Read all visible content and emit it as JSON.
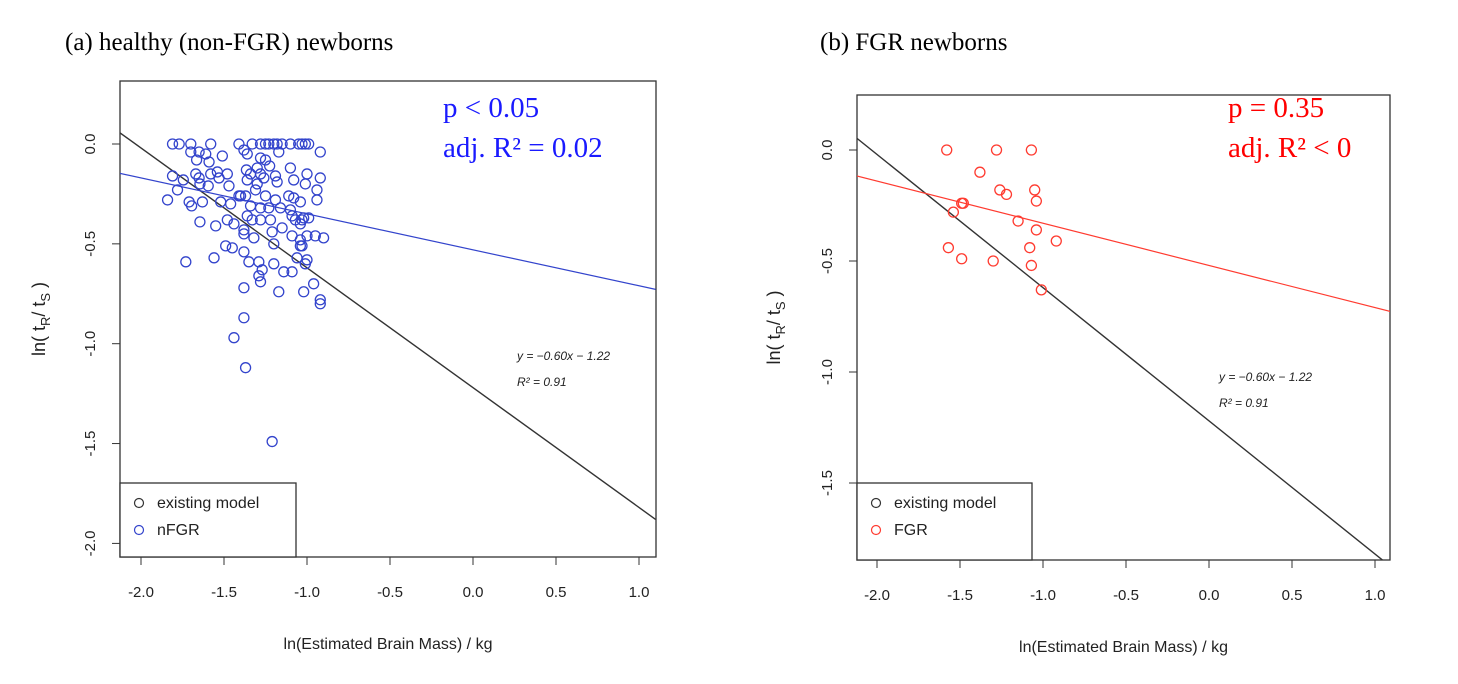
{
  "chart_data": [
    {
      "type": "scatter",
      "title": "(a) healthy (non-FGR) newborns",
      "xlabel": "ln(Estimated Brain Mass) / kg",
      "ylabel": {
        "pre": "ln(  t",
        "sub1": "R",
        "mid": "/ t",
        "sub2": "S",
        "post": "  )"
      },
      "xlim": [
        -2.13,
        1.1
      ],
      "ylim": [
        -2.07,
        0.32
      ],
      "xticks": [
        "-2.0",
        "-1.5",
        "-1.0",
        "-0.5",
        "0.0",
        "0.5",
        "1.0"
      ],
      "yticks": [
        "0.0",
        "-0.5",
        "-1.0",
        "-1.5",
        "-2.0"
      ],
      "grid": false,
      "stats": {
        "p": "p < 0.05",
        "r2": "adj. R² = 0.02"
      },
      "equation": "y = −0.60x − 1.22",
      "model_r2": "R² = 0.91",
      "legend": {
        "position": "bottom-left",
        "entries": [
          "existing model",
          "nFGR"
        ]
      },
      "colors": {
        "data": "#3344cc",
        "model": "#333333",
        "stats": "#1a1aff"
      },
      "model_line": {
        "slope": -0.6,
        "intercept": -1.22
      },
      "fit_line": {
        "slope": -0.18,
        "intercept": -0.53
      },
      "series": [
        {
          "name": "nFGR",
          "points": [
            [
              -1.81,
              0.0
            ],
            [
              -1.77,
              0.0
            ],
            [
              -1.7,
              0.0
            ],
            [
              -1.58,
              0.0
            ],
            [
              -1.41,
              0.0
            ],
            [
              -1.33,
              0.0
            ],
            [
              -1.28,
              0.0
            ],
            [
              -1.25,
              0.0
            ],
            [
              -1.23,
              0.0
            ],
            [
              -1.2,
              0.0
            ],
            [
              -1.18,
              0.0
            ],
            [
              -1.15,
              0.0
            ],
            [
              -1.1,
              0.0
            ],
            [
              -1.05,
              0.0
            ],
            [
              -1.03,
              0.0
            ],
            [
              -1.01,
              0.0
            ],
            [
              -0.99,
              0.0
            ],
            [
              -0.92,
              -0.04
            ],
            [
              -1.7,
              -0.04
            ],
            [
              -1.65,
              -0.04
            ],
            [
              -1.61,
              -0.05
            ],
            [
              -1.51,
              -0.06
            ],
            [
              -1.38,
              -0.03
            ],
            [
              -1.36,
              -0.05
            ],
            [
              -1.17,
              -0.04
            ],
            [
              -1.665,
              -0.08
            ],
            [
              -1.59,
              -0.09
            ],
            [
              -1.28,
              -0.07
            ],
            [
              -1.25,
              -0.08
            ],
            [
              -1.225,
              -0.11
            ],
            [
              -1.81,
              -0.16
            ],
            [
              -1.67,
              -0.15
            ],
            [
              -1.65,
              -0.17
            ],
            [
              -1.58,
              -0.15
            ],
            [
              -1.54,
              -0.14
            ],
            [
              -1.48,
              -0.15
            ],
            [
              -1.53,
              -0.17
            ],
            [
              -1.365,
              -0.13
            ],
            [
              -1.34,
              -0.15
            ],
            [
              -1.3,
              -0.12
            ],
            [
              -1.28,
              -0.15
            ],
            [
              -1.26,
              -0.17
            ],
            [
              -1.19,
              -0.16
            ],
            [
              -1.1,
              -0.12
            ],
            [
              -1.0,
              -0.15
            ],
            [
              -0.92,
              -0.17
            ],
            [
              -1.01,
              -0.2
            ],
            [
              -1.18,
              -0.19
            ],
            [
              -1.08,
              -0.18
            ],
            [
              -0.94,
              -0.23
            ],
            [
              -1.3,
              -0.2
            ],
            [
              -1.36,
              -0.18
            ],
            [
              -1.745,
              -0.18
            ],
            [
              -1.78,
              -0.23
            ],
            [
              -1.645,
              -0.2
            ],
            [
              -1.595,
              -0.21
            ],
            [
              -1.47,
              -0.21
            ],
            [
              -1.41,
              -0.26
            ],
            [
              -1.37,
              -0.26
            ],
            [
              -1.31,
              -0.23
            ],
            [
              -1.25,
              -0.26
            ],
            [
              -1.19,
              -0.28
            ],
            [
              -1.11,
              -0.26
            ],
            [
              -1.08,
              -0.27
            ],
            [
              -1.04,
              -0.29
            ],
            [
              -0.94,
              -0.28
            ],
            [
              -1.84,
              -0.28
            ],
            [
              -1.71,
              -0.29
            ],
            [
              -1.695,
              -0.31
            ],
            [
              -1.63,
              -0.29
            ],
            [
              -1.52,
              -0.29
            ],
            [
              -1.46,
              -0.3
            ],
            [
              -1.4,
              -0.26
            ],
            [
              -1.34,
              -0.31
            ],
            [
              -1.28,
              -0.32
            ],
            [
              -1.23,
              -0.32
            ],
            [
              -1.16,
              -0.32
            ],
            [
              -1.1,
              -0.33
            ],
            [
              -1.02,
              -0.37
            ],
            [
              -0.99,
              -0.37
            ],
            [
              -1.09,
              -0.36
            ],
            [
              -1.03,
              -0.38
            ],
            [
              -1.645,
              -0.39
            ],
            [
              -1.55,
              -0.41
            ],
            [
              -1.48,
              -0.38
            ],
            [
              -1.44,
              -0.4
            ],
            [
              -1.36,
              -0.36
            ],
            [
              -1.33,
              -0.38
            ],
            [
              -1.28,
              -0.38
            ],
            [
              -1.22,
              -0.38
            ],
            [
              -1.15,
              -0.42
            ],
            [
              -1.07,
              -0.38
            ],
            [
              -1.04,
              -0.4
            ],
            [
              -1.38,
              -0.43
            ],
            [
              -1.38,
              -0.45
            ],
            [
              -1.32,
              -0.47
            ],
            [
              -1.21,
              -0.44
            ],
            [
              -1.09,
              -0.46
            ],
            [
              -1.04,
              -0.48
            ],
            [
              -1.0,
              -0.46
            ],
            [
              -0.95,
              -0.46
            ],
            [
              -0.9,
              -0.47
            ],
            [
              -1.49,
              -0.51
            ],
            [
              -1.45,
              -0.52
            ],
            [
              -1.38,
              -0.54
            ],
            [
              -1.2,
              -0.5
            ],
            [
              -1.04,
              -0.51
            ],
            [
              -1.03,
              -0.51
            ],
            [
              -1.73,
              -0.59
            ],
            [
              -1.56,
              -0.57
            ],
            [
              -1.35,
              -0.59
            ],
            [
              -1.29,
              -0.59
            ],
            [
              -1.27,
              -0.63
            ],
            [
              -1.29,
              -0.66
            ],
            [
              -1.28,
              -0.69
            ],
            [
              -1.2,
              -0.6
            ],
            [
              -1.14,
              -0.64
            ],
            [
              -1.09,
              -0.64
            ],
            [
              -1.06,
              -0.57
            ],
            [
              -1.0,
              -0.58
            ],
            [
              -1.01,
              -0.6
            ],
            [
              -1.38,
              -0.72
            ],
            [
              -1.17,
              -0.74
            ],
            [
              -1.02,
              -0.74
            ],
            [
              -0.96,
              -0.7
            ],
            [
              -0.92,
              -0.78
            ],
            [
              -0.92,
              -0.8
            ],
            [
              -1.38,
              -0.87
            ],
            [
              -1.44,
              -0.97
            ],
            [
              -1.37,
              -1.12
            ],
            [
              -1.21,
              -1.49
            ]
          ]
        }
      ]
    },
    {
      "type": "scatter",
      "title": "(b) FGR newborns",
      "xlabel": "ln(Estimated Brain Mass) / kg",
      "ylabel": {
        "pre": "ln(  t",
        "sub1": "R",
        "mid": "/ t",
        "sub2": "S",
        "post": "  )"
      },
      "xlim": [
        -2.13,
        1.1
      ],
      "ylim": [
        -1.85,
        0.25
      ],
      "xticks": [
        "-2.0",
        "-1.5",
        "-1.0",
        "-0.5",
        "0.0",
        "0.5",
        "1.0"
      ],
      "yticks": [
        "0.0",
        "-0.5",
        "-1.0",
        "-1.5"
      ],
      "grid": false,
      "stats": {
        "p": "p = 0.35",
        "r2": "adj. R² < 0"
      },
      "equation": "y = −0.60x − 1.22",
      "model_r2": "R² = 0.91",
      "legend": {
        "position": "bottom-left",
        "entries": [
          "existing model",
          "FGR"
        ]
      },
      "colors": {
        "data": "#ff3b30",
        "model": "#333333",
        "stats": "#ff0000"
      },
      "model_line": {
        "slope": -0.6,
        "intercept": -1.22
      },
      "fit_line": {
        "slope": -0.19,
        "intercept": -0.52
      },
      "series": [
        {
          "name": "FGR",
          "points": [
            [
              -1.58,
              0.0
            ],
            [
              -1.28,
              0.0
            ],
            [
              -1.07,
              0.0
            ],
            [
              -1.38,
              -0.1
            ],
            [
              -1.26,
              -0.18
            ],
            [
              -1.22,
              -0.2
            ],
            [
              -1.05,
              -0.18
            ],
            [
              -1.04,
              -0.23
            ],
            [
              -1.49,
              -0.24
            ],
            [
              -1.48,
              -0.24
            ],
            [
              -1.54,
              -0.28
            ],
            [
              -1.15,
              -0.32
            ],
            [
              -1.04,
              -0.36
            ],
            [
              -0.92,
              -0.41
            ],
            [
              -1.57,
              -0.44
            ],
            [
              -1.08,
              -0.44
            ],
            [
              -1.49,
              -0.49
            ],
            [
              -1.3,
              -0.5
            ],
            [
              -1.07,
              -0.52
            ],
            [
              -1.01,
              -0.63
            ]
          ]
        }
      ]
    }
  ]
}
